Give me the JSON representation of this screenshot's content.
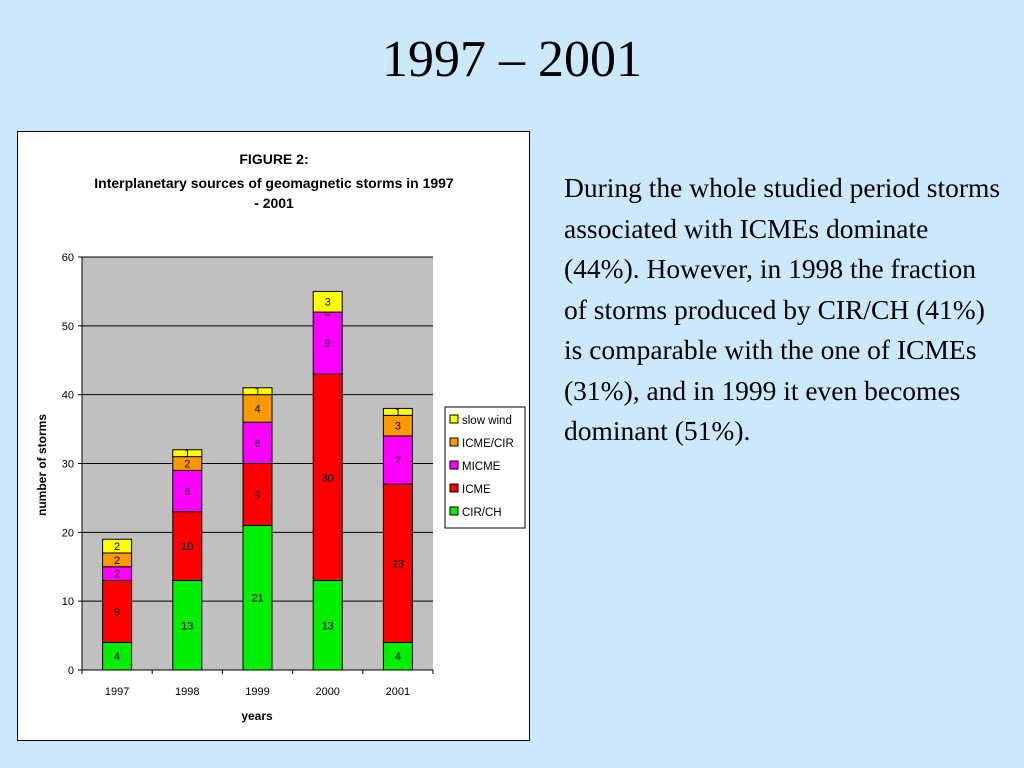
{
  "slide": {
    "title": "1997 – 2001",
    "body": "During the whole studied period storms associated with ICMEs dominate (44%). However, in 1998 the fraction of storms produced by CIR/CH (41%) is comparable with the one of ICMEs (31%), and in 1999 it even becomes dominant (51%)."
  },
  "chart_data": {
    "type": "bar",
    "stacked": true,
    "title": "FIGURE 2:",
    "subtitle": "Interplanetary sources of geomagnetic storms in 1997 - 2001",
    "xlabel": "years",
    "ylabel": "number of storms",
    "ylim": [
      0,
      60
    ],
    "yticks": [
      0,
      10,
      20,
      30,
      40,
      50,
      60
    ],
    "grid": true,
    "legend_position": "right",
    "categories": [
      "1997",
      "1998",
      "1999",
      "2000",
      "2001"
    ],
    "series": [
      {
        "name": "CIR/CH",
        "color": "#00ee00",
        "values": [
          4,
          13,
          21,
          13,
          4
        ]
      },
      {
        "name": "ICME",
        "color": "#ff0000",
        "values": [
          9,
          10,
          9,
          30,
          23
        ]
      },
      {
        "name": "MICME",
        "color": "#ff00ff",
        "values": [
          2,
          6,
          6,
          9,
          7
        ]
      },
      {
        "name": "ICME/CIR",
        "color": "#ff9900",
        "values": [
          2,
          2,
          4,
          0,
          3
        ]
      },
      {
        "name": "slow wind",
        "color": "#ffff00",
        "values": [
          2,
          1,
          1,
          3,
          1
        ]
      }
    ],
    "plot_background": "#c0c0c0"
  }
}
